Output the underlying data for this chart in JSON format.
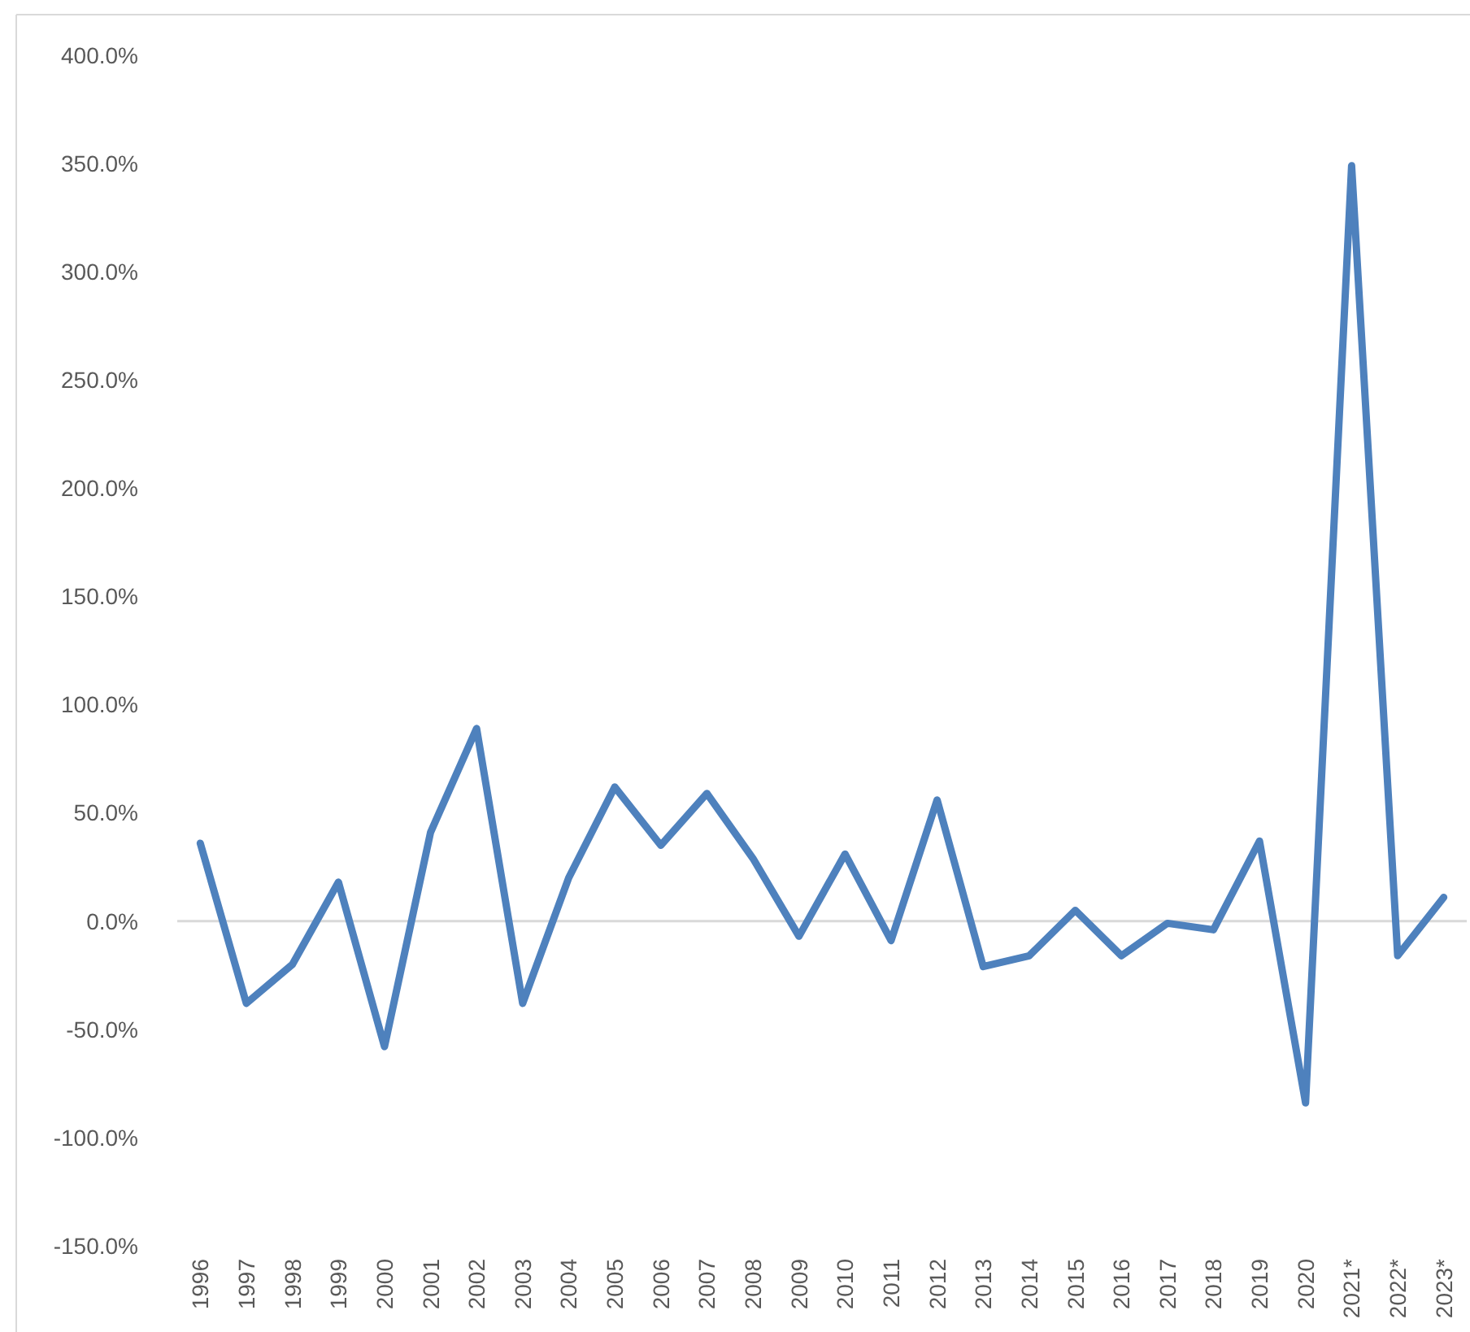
{
  "chart_data": {
    "type": "line",
    "categories": [
      "1996",
      "1997",
      "1998",
      "1999",
      "2000",
      "2001",
      "2002",
      "2003",
      "2004",
      "2005",
      "2006",
      "2007",
      "2008",
      "2009",
      "2010",
      "2011",
      "2012",
      "2013",
      "2014",
      "2015",
      "2016",
      "2017",
      "2018",
      "2019",
      "2020",
      "2021*",
      "2022*",
      "2023*"
    ],
    "series": [
      {
        "color": "#4e81bd",
        "values": [
          36,
          -38,
          -20,
          18,
          -58,
          41,
          89,
          -38,
          20,
          62,
          35,
          59,
          29,
          -7,
          31,
          -9,
          56,
          -21,
          -16,
          5,
          -16,
          -1,
          -4,
          37,
          -84,
          349,
          -16,
          11
        ]
      }
    ],
    "ylim": [
      -150,
      400
    ],
    "yticks": [
      {
        "value": -150,
        "label": "-150.0%"
      },
      {
        "value": -100,
        "label": "-100.0%"
      },
      {
        "value": -50,
        "label": "-50.0%"
      },
      {
        "value": 0,
        "label": "0.0%"
      },
      {
        "value": 50,
        "label": "50.0%"
      },
      {
        "value": 100,
        "label": "100.0%"
      },
      {
        "value": 150,
        "label": "150.0%"
      },
      {
        "value": 200,
        "label": "200.0%"
      },
      {
        "value": 250,
        "label": "250.0%"
      },
      {
        "value": 300,
        "label": "300.0%"
      },
      {
        "value": 350,
        "label": "350.0%"
      },
      {
        "value": 400,
        "label": "400.0%"
      }
    ],
    "marker": "none",
    "line_style": "solid"
  }
}
